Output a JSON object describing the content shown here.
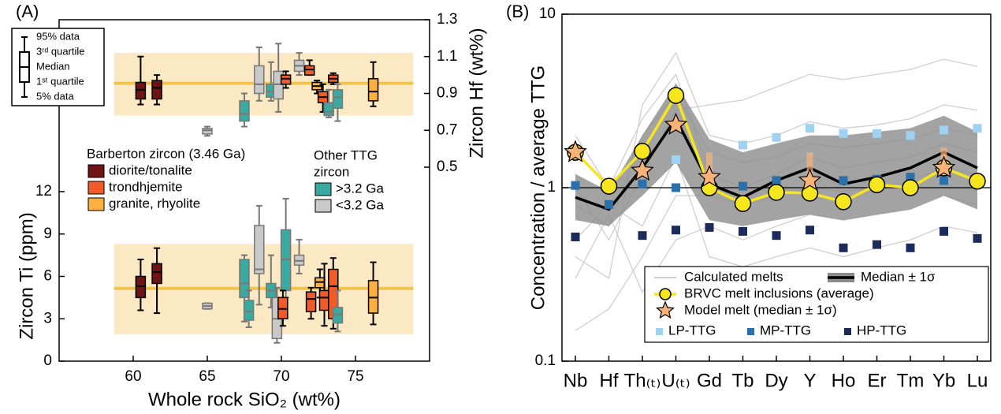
{
  "chart_data": [
    {
      "type": "box",
      "panel_label": "(A)",
      "y_label": "Zircon Hf (wt%)",
      "xlim": [
        55,
        80
      ],
      "ylim": [
        0.5,
        1.3
      ],
      "yticks": [
        0.5,
        0.7,
        0.9,
        1.1,
        1.3
      ],
      "box_key": [
        "95% data",
        "3ʳᵈ quartile",
        "Median",
        "1ˢᵗ quartile",
        "5% data"
      ],
      "ref_median": 0.955,
      "ref_band": [
        0.78,
        1.12
      ],
      "ref_band_x": [
        58.7,
        78.9
      ],
      "ref_color": "#f2c44f",
      "ref_band_color": "#fbe9c4",
      "boxes": [
        {
          "x": 60.5,
          "color": "#6e1414",
          "edge": "#000000",
          "values": [
            0.84,
            0.87,
            0.92,
            0.96,
            1.1
          ]
        },
        {
          "x": 61.6,
          "color": "#6e1414",
          "edge": "#000000",
          "values": [
            0.84,
            0.87,
            0.93,
            0.97,
            1.0
          ]
        },
        {
          "x": 65.0,
          "color": "#c9c9c9",
          "edge": "#777777",
          "values": [
            0.67,
            0.68,
            0.7,
            0.71,
            0.72
          ]
        },
        {
          "x": 67.5,
          "color": "#3aa99f",
          "edge": "#777777",
          "values": [
            0.72,
            0.75,
            0.79,
            0.86,
            0.9
          ]
        },
        {
          "x": 68.5,
          "color": "#c9c9c9",
          "edge": "#777777",
          "values": [
            0.86,
            0.9,
            0.95,
            1.05,
            1.15
          ]
        },
        {
          "x": 69.3,
          "color": "#3aa99f",
          "edge": "#777777",
          "values": [
            0.86,
            0.88,
            0.91,
            0.95,
            1.07
          ]
        },
        {
          "x": 69.8,
          "color": "#c9c9c9",
          "edge": "#777777",
          "values": [
            0.8,
            0.87,
            0.95,
            1.02,
            1.17
          ]
        },
        {
          "x": 70.3,
          "color": "#f15a29",
          "edge": "#000000",
          "values": [
            0.93,
            0.95,
            0.98,
            1.0,
            1.02
          ]
        },
        {
          "x": 71.2,
          "color": "#c9c9c9",
          "edge": "#777777",
          "values": [
            1.0,
            1.02,
            1.05,
            1.08,
            1.12
          ]
        },
        {
          "x": 71.9,
          "color": "#f15a29",
          "edge": "#000000",
          "values": [
            1.0,
            1.0,
            1.03,
            1.05,
            1.08
          ]
        },
        {
          "x": 72.4,
          "color": "#fbb040",
          "edge": "#000000",
          "values": [
            0.9,
            0.92,
            0.94,
            0.96,
            0.97
          ]
        },
        {
          "x": 72.8,
          "color": "#f15a29",
          "edge": "#000000",
          "values": [
            0.8,
            0.85,
            0.88,
            0.91,
            0.95
          ]
        },
        {
          "x": 73.2,
          "color": "#3aa99f",
          "edge": "#777777",
          "values": [
            0.77,
            0.78,
            0.8,
            0.85,
            0.92
          ]
        },
        {
          "x": 73.5,
          "color": "#f15a29",
          "edge": "#000000",
          "values": [
            0.95,
            0.96,
            0.98,
            1.0,
            1.01
          ]
        },
        {
          "x": 73.8,
          "color": "#3aa99f",
          "edge": "#777777",
          "values": [
            0.75,
            0.82,
            0.88,
            0.92,
            0.95
          ]
        },
        {
          "x": 76.2,
          "color": "#fbb040",
          "edge": "#000000",
          "values": [
            0.83,
            0.86,
            0.91,
            0.98,
            1.07
          ]
        }
      ]
    },
    {
      "type": "box",
      "y_label": "Zircon Ti (ppm)",
      "x_label": "Whole rock SiO₂ (wt%)",
      "xlim": [
        55,
        80
      ],
      "xticks": [
        60,
        65,
        70,
        75
      ],
      "ylim": [
        0,
        12
      ],
      "yticks": [
        0,
        3,
        6,
        9,
        12
      ],
      "ref_median": 5.15,
      "ref_band": [
        1.9,
        8.3
      ],
      "ref_band_x": [
        58.7,
        78.9
      ],
      "ref_color": "#f2c44f",
      "ref_band_color": "#fbe9c4",
      "legend": [
        {
          "title_lines": [
            "Barberton zircon (3.46 Ga)"
          ],
          "items": [
            {
              "name": "diorite/tonalite",
              "color": "#6e1414"
            },
            {
              "name": "trondhjemite",
              "color": "#f15a29"
            },
            {
              "name": "granite, rhyolite",
              "color": "#fbb040"
            }
          ]
        },
        {
          "title_lines": [
            "Other TTG",
            "zircon"
          ],
          "items": [
            {
              "name": ">3.2 Ga",
              "color": "#3aa99f"
            },
            {
              "name": "<3.2 Ga",
              "color": "#c9c9c9"
            }
          ]
        }
      ],
      "boxes": [
        {
          "x": 60.5,
          "color": "#6e1414",
          "edge": "#000000",
          "values": [
            3.6,
            4.5,
            5.3,
            6.0,
            7.2
          ]
        },
        {
          "x": 61.6,
          "color": "#6e1414",
          "edge": "#000000",
          "values": [
            3.4,
            5.5,
            6.3,
            6.9,
            8.0
          ]
        },
        {
          "x": 65.0,
          "color": "#c9c9c9",
          "edge": "#777777",
          "values": [
            3.7,
            3.7,
            3.9,
            4.1,
            4.1
          ]
        },
        {
          "x": 67.5,
          "color": "#3aa99f",
          "edge": "#777777",
          "values": [
            2.8,
            4.5,
            5.5,
            7.2,
            7.5
          ]
        },
        {
          "x": 67.8,
          "color": "#3aa99f",
          "edge": "#777777",
          "values": [
            2.4,
            2.9,
            3.5,
            4.3,
            5.0
          ]
        },
        {
          "x": 68.5,
          "color": "#c9c9c9",
          "edge": "#777777",
          "values": [
            4.0,
            6.2,
            6.5,
            9.6,
            11.0
          ]
        },
        {
          "x": 69.3,
          "color": "#3aa99f",
          "edge": "#777777",
          "values": [
            3.8,
            4.5,
            5.0,
            5.5,
            7.5
          ]
        },
        {
          "x": 69.7,
          "color": "#c9c9c9",
          "edge": "#777777",
          "values": [
            1.3,
            1.6,
            3.0,
            4.5,
            5.2
          ]
        },
        {
          "x": 70.3,
          "color": "#3aa99f",
          "edge": "#777777",
          "values": [
            4.5,
            5.0,
            7.2,
            9.3,
            11.5
          ]
        },
        {
          "x": 70.1,
          "color": "#f15a29",
          "edge": "#000000",
          "values": [
            2.5,
            3.0,
            3.7,
            4.5,
            5.0
          ]
        },
        {
          "x": 71.2,
          "color": "#c9c9c9",
          "edge": "#777777",
          "values": [
            6.2,
            6.8,
            7.1,
            7.5,
            8.6
          ]
        },
        {
          "x": 72.0,
          "color": "#f15a29",
          "edge": "#000000",
          "values": [
            3.0,
            3.5,
            4.4,
            4.9,
            5.2
          ]
        },
        {
          "x": 72.6,
          "color": "#fbb040",
          "edge": "#000000",
          "values": [
            4.5,
            5.2,
            5.6,
            5.9,
            6.5
          ]
        },
        {
          "x": 72.9,
          "color": "#f15a29",
          "edge": "#000000",
          "values": [
            2.5,
            3.6,
            4.5,
            5.0,
            6.9
          ]
        },
        {
          "x": 73.5,
          "color": "#f15a29",
          "edge": "#000000",
          "values": [
            2.3,
            3.0,
            5.3,
            6.5,
            7.3
          ]
        },
        {
          "x": 73.8,
          "color": "#3aa99f",
          "edge": "#777777",
          "values": [
            2.1,
            2.7,
            3.3,
            3.8,
            5.0
          ]
        },
        {
          "x": 76.2,
          "color": "#fbb040",
          "edge": "#000000",
          "values": [
            2.6,
            3.4,
            4.5,
            5.7,
            7.0
          ]
        }
      ]
    },
    {
      "type": "line",
      "panel_label": "(B)",
      "y_label": "Concentration / average TTG",
      "log_scale": true,
      "ylim": [
        0.1,
        10
      ],
      "yticks": [
        0.1,
        1,
        10
      ],
      "reference_line": 1,
      "categories": [
        "Nb",
        "Hf",
        "Th₍ₜ₎",
        "U₍ₜ₎",
        "Gd",
        "Tb",
        "Dy",
        "Y",
        "Ho",
        "Er",
        "Tm",
        "Yb",
        "Lu"
      ],
      "series": [
        {
          "name": "Calculated melts",
          "color": "#cfcfcf",
          "lines": [
            [
              0.4,
              0.3,
              3.0,
              6.0,
              2.0,
              1.8,
              2.0,
              2.4,
              2.2,
              2.3,
              2.5,
              3.0,
              2.8
            ],
            [
              2.0,
              1.0,
              2.5,
              4.5,
              1.2,
              1.0,
              1.2,
              1.5,
              1.3,
              1.4,
              1.5,
              1.8,
              1.6
            ],
            [
              0.5,
              0.8,
              0.6,
              1.5,
              0.4,
              0.35,
              0.4,
              0.45,
              0.4,
              0.45,
              0.5,
              0.6,
              0.55
            ],
            [
              1.0,
              0.5,
              1.2,
              2.8,
              3.0,
              3.2,
              3.8,
              4.5,
              4.2,
              4.5,
              4.8,
              5.5,
              5.0
            ],
            [
              0.3,
              0.7,
              0.25,
              0.5,
              0.6,
              0.5,
              0.6,
              0.7,
              0.65,
              0.7,
              0.75,
              0.9,
              0.8
            ],
            [
              0.8,
              0.6,
              2.0,
              3.5,
              1.6,
              1.4,
              1.5,
              1.8,
              1.7,
              1.8,
              1.9,
              2.2,
              2.0
            ],
            [
              0.15,
              0.2,
              0.4,
              0.9,
              0.9,
              0.8,
              0.9,
              1.0,
              0.95,
              1.0,
              1.1,
              1.3,
              1.2
            ]
          ]
        },
        {
          "name": "Median ± 1σ",
          "color": "#000000",
          "band_color": "#8c8c8c",
          "values": [
            0.88,
            0.75,
            1.3,
            2.5,
            1.05,
            0.88,
            1.1,
            1.3,
            1.05,
            1.15,
            1.3,
            1.6,
            1.3
          ],
          "lower": [
            0.65,
            0.6,
            0.9,
            1.4,
            0.65,
            0.6,
            0.65,
            0.7,
            0.65,
            0.7,
            0.75,
            0.9,
            0.75
          ],
          "upper": [
            1.2,
            0.95,
            2.0,
            4.0,
            1.9,
            1.6,
            1.8,
            2.0,
            2.0,
            2.1,
            2.2,
            2.6,
            2.1
          ]
        },
        {
          "name": "BRVC melt inclusions (average)",
          "color": "#f5e61e",
          "marker": "circle",
          "values": [
            1.6,
            1.02,
            1.62,
            3.4,
            1.0,
            0.81,
            0.94,
            0.93,
            0.83,
            1.04,
            1.0,
            1.3,
            1.09
          ]
        },
        {
          "name": "Model melt (median ± 1σ)",
          "color": "#f7b27a",
          "marker": "star",
          "values": [
            1.6,
            null,
            1.25,
            2.3,
            1.15,
            null,
            null,
            1.1,
            null,
            null,
            null,
            1.3,
            null
          ],
          "low": [
            null,
            null,
            null,
            null,
            1.0,
            null,
            null,
            0.95,
            null,
            null,
            null,
            1.1,
            null
          ],
          "high": [
            null,
            null,
            null,
            null,
            1.6,
            null,
            null,
            1.6,
            null,
            null,
            null,
            1.7,
            null
          ]
        },
        {
          "name": "LP-TTG",
          "color": "#9fd1f2",
          "marker": "square",
          "values": [
            null,
            null,
            null,
            1.45,
            null,
            1.76,
            1.95,
            2.2,
            2.05,
            2.05,
            2.0,
            2.15,
            2.2
          ]
        },
        {
          "name": "MP-TTG",
          "color": "#2b6fab",
          "marker": "square",
          "values": [
            1.03,
            0.8,
            1.05,
            1.0,
            1.0,
            1.02,
            1.1,
            1.1,
            1.1,
            1.12,
            1.15,
            1.1,
            null
          ]
        },
        {
          "name": "HP-TTG",
          "color": "#1d2a5c",
          "marker": "square",
          "values": [
            0.52,
            null,
            0.53,
            0.57,
            0.59,
            0.56,
            0.53,
            0.57,
            0.45,
            0.47,
            0.45,
            0.56,
            0.51
          ]
        }
      ]
    }
  ]
}
